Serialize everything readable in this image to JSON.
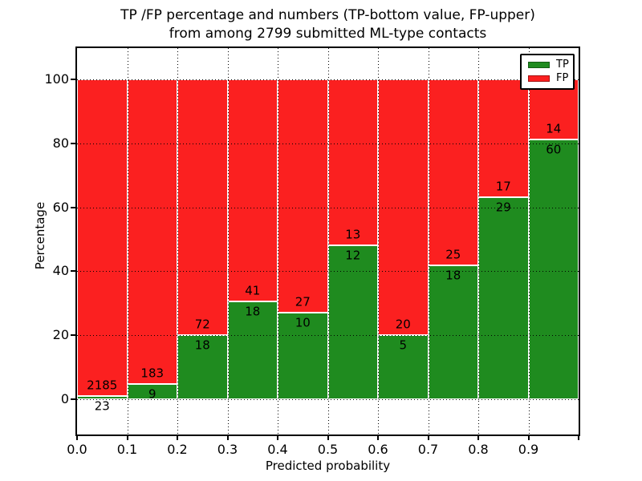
{
  "figure": {
    "title_line1": "TP /FP percentage and numbers (TP-bottom value, FP-upper)",
    "title_line2": "from among 2799 submitted ML-type contacts"
  },
  "chart_data": {
    "type": "bar",
    "variant": "stacked-percentage",
    "title": "TP /FP percentage and numbers (TP-bottom value, FP-upper) from among 2799 submitted ML-type contacts",
    "xlabel": "Predicted probability",
    "ylabel": "Percentage",
    "categories": [
      "0.0",
      "0.1",
      "0.2",
      "0.3",
      "0.4",
      "0.5",
      "0.6",
      "0.7",
      "0.8",
      "0.9"
    ],
    "bin_width": 0.1,
    "series": [
      {
        "name": "TP",
        "color": "#1f8b1f",
        "edge_color": "#145c14",
        "counts": [
          23,
          9,
          18,
          18,
          10,
          12,
          5,
          18,
          29,
          60
        ]
      },
      {
        "name": "FP",
        "color": "#fb2020",
        "edge_color": "#a31010",
        "counts": [
          2185,
          183,
          72,
          41,
          27,
          13,
          20,
          25,
          17,
          14
        ]
      }
    ],
    "tp_percent": [
      1.04,
      4.69,
      20.0,
      30.51,
      27.03,
      48.0,
      20.0,
      41.86,
      63.04,
      81.08
    ],
    "total_contacts": 2799,
    "y_ticks": [
      0,
      20,
      40,
      60,
      80,
      100
    ],
    "ylim": [
      -11,
      110
    ],
    "xlim": [
      0.0,
      1.0
    ],
    "grid": "dotted-black",
    "legend": {
      "position": "upper right",
      "entries": [
        {
          "label": "TP",
          "color": "#1f8b1f"
        },
        {
          "label": "FP",
          "color": "#fb2020"
        }
      ]
    }
  }
}
